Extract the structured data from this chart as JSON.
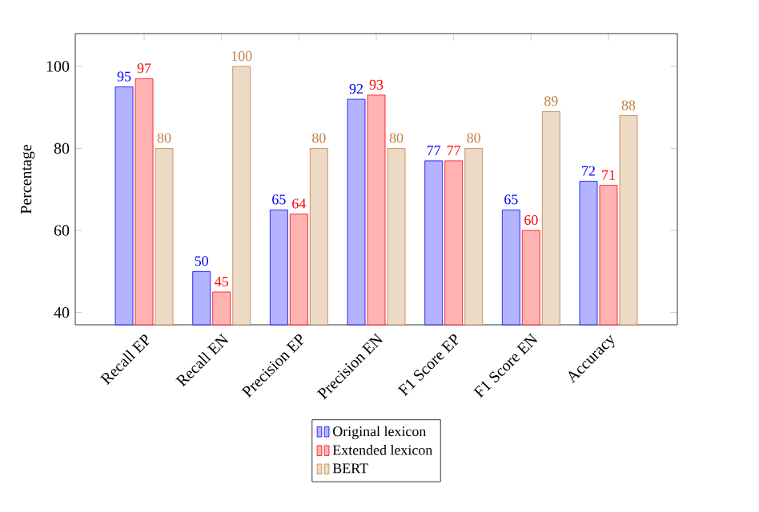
{
  "chart_data": {
    "type": "bar",
    "ylabel": "Percentage",
    "categories": [
      "Recall EP",
      "Recall EN",
      "Precision EP",
      "Precision EN",
      "F1 Score EP",
      "F1 Score EN",
      "Accuracy"
    ],
    "series": [
      {
        "name": "Original lexicon",
        "color": "#b3b3ff",
        "values": [
          95,
          50,
          65,
          92,
          77,
          65,
          72
        ]
      },
      {
        "name": "Extended lexicon",
        "color": "#ffb3b3",
        "values": [
          97,
          45,
          64,
          93,
          77,
          60,
          71
        ]
      },
      {
        "name": "BERT",
        "color": "#ecd9c6",
        "values": [
          80,
          100,
          80,
          80,
          80,
          89,
          88
        ]
      }
    ],
    "ylim": [
      37,
      108
    ],
    "yticks": [
      40,
      60,
      80,
      100
    ],
    "data_labels": true,
    "legend": "bottom",
    "grid": false
  }
}
